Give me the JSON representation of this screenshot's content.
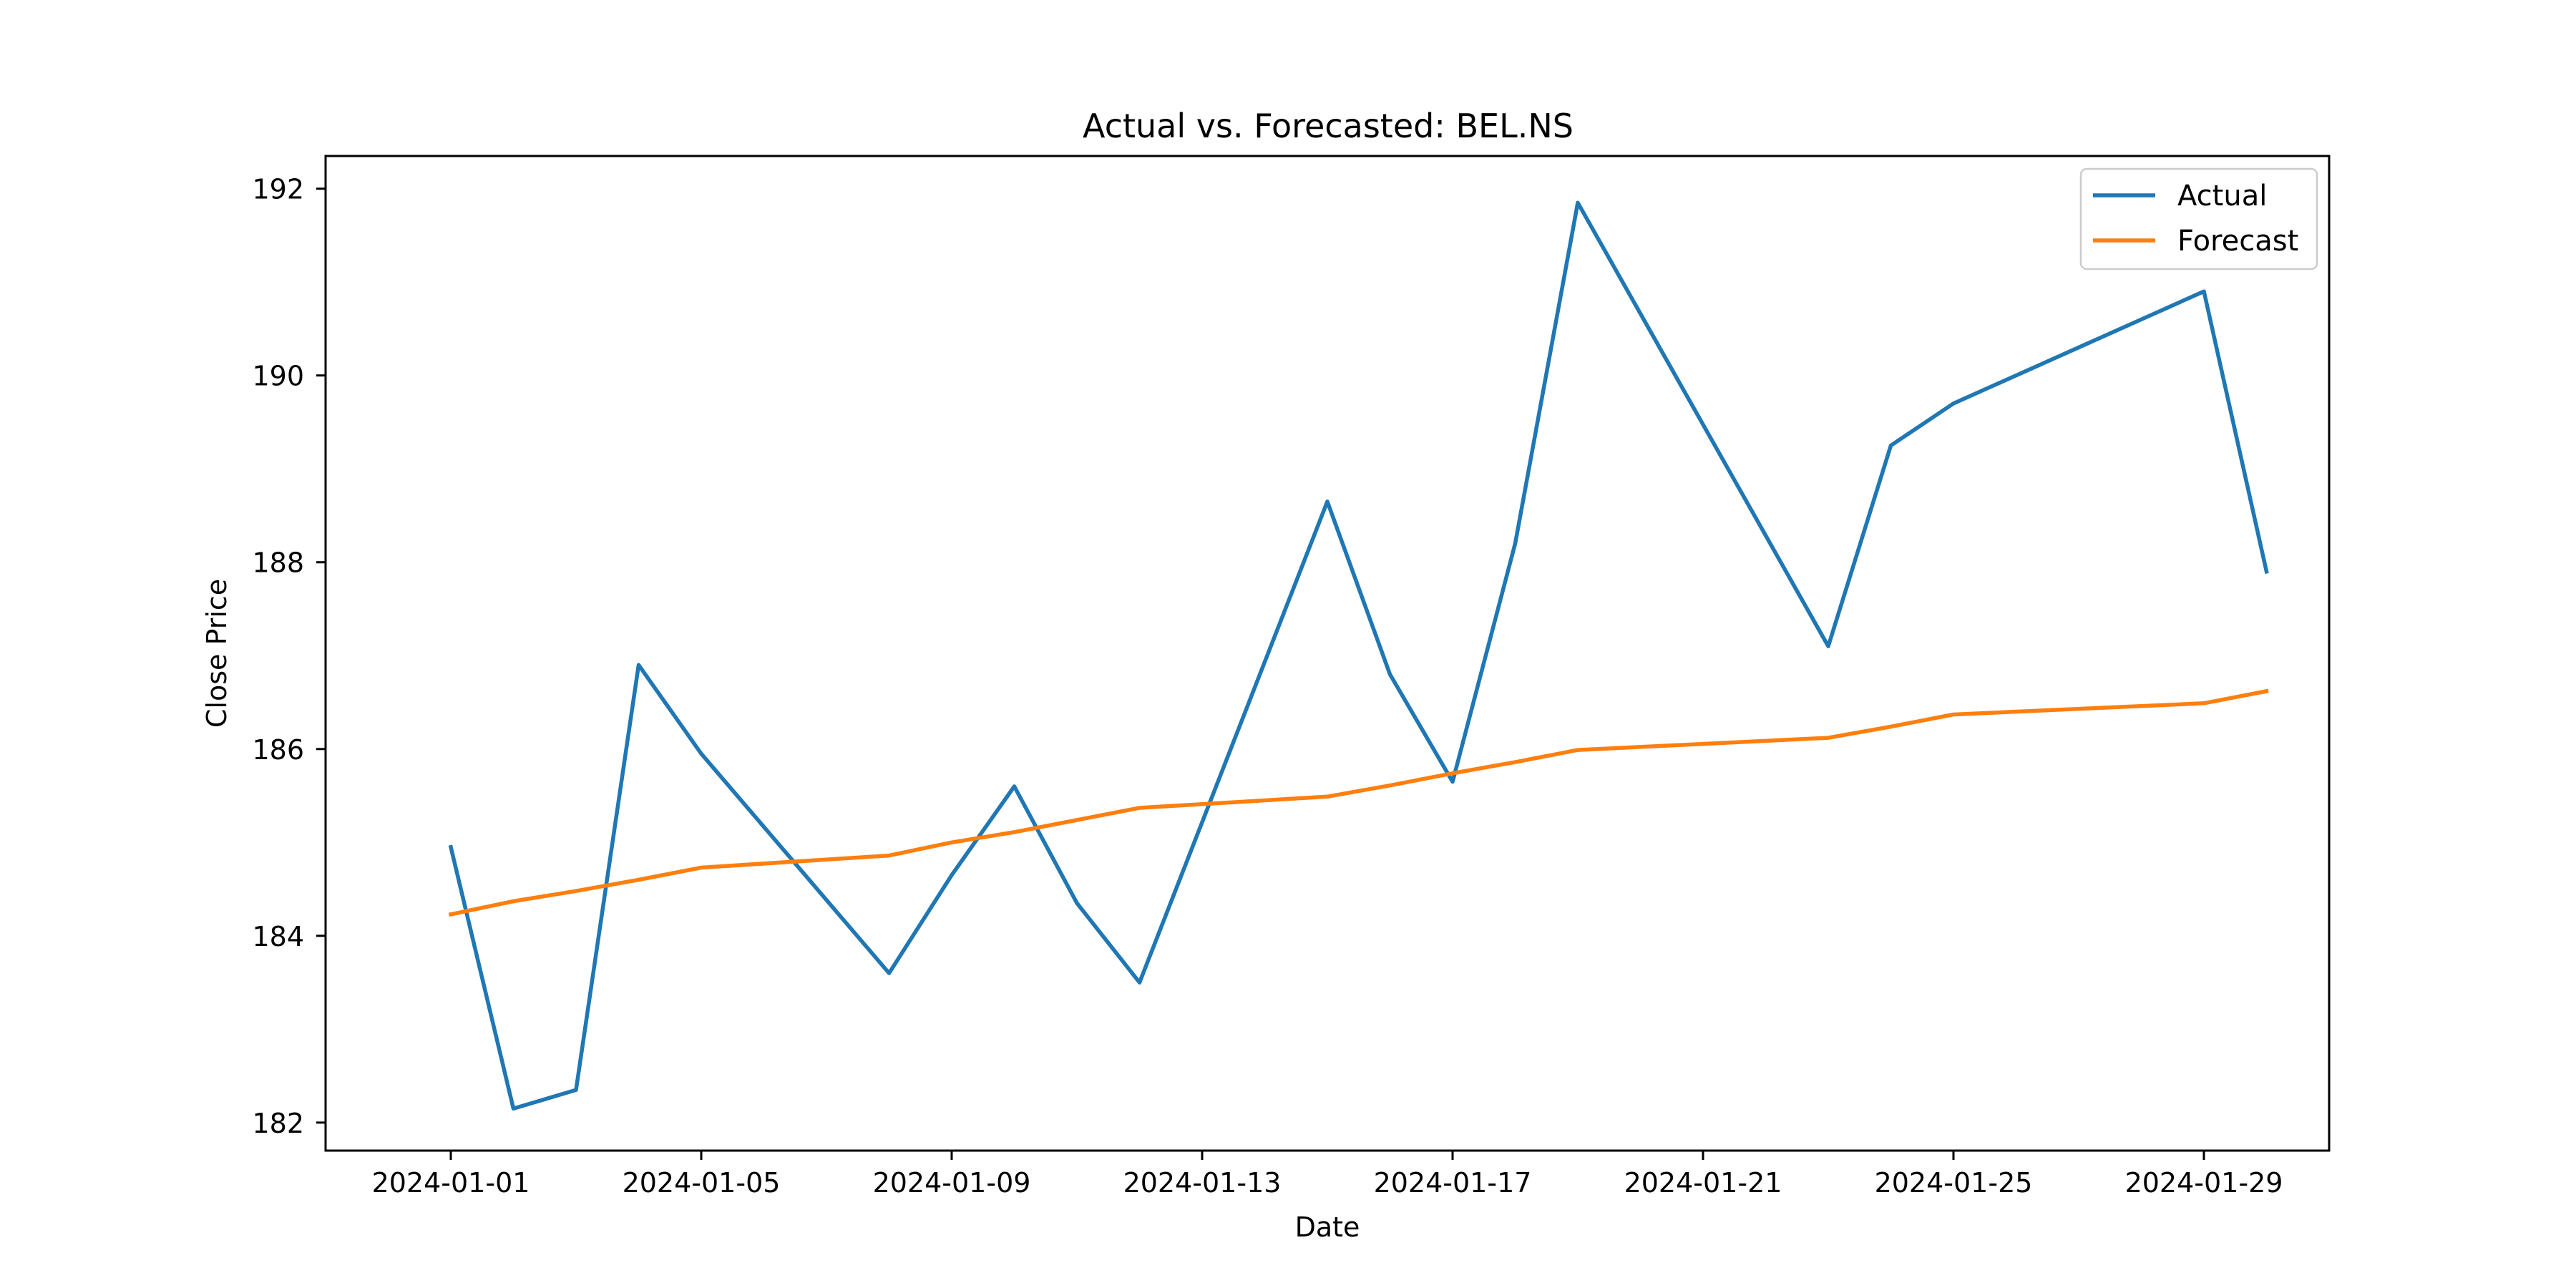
{
  "chart_data": {
    "type": "line",
    "title": "Actual vs. Forecasted: BEL.NS",
    "xlabel": "Date",
    "ylabel": "Close Price",
    "x_tick_labels": [
      "2024-01-01",
      "2024-01-05",
      "2024-01-09",
      "2024-01-13",
      "2024-01-17",
      "2024-01-21",
      "2024-01-25",
      "2024-01-29"
    ],
    "x_ticks": [
      "2024-01-01",
      "2024-01-05",
      "2024-01-09",
      "2024-01-13",
      "2024-01-17",
      "2024-01-21",
      "2024-01-25",
      "2024-01-29"
    ],
    "y_ticks": [
      182,
      184,
      186,
      188,
      190,
      192
    ],
    "xlim": [
      "2023-12-30",
      "2024-01-31"
    ],
    "ylim": [
      181.7,
      192.35
    ],
    "grid": false,
    "legend_position": "top-right",
    "series": [
      {
        "name": "Actual",
        "color": "#1f77b4",
        "x": [
          "2024-01-01",
          "2024-01-02",
          "2024-01-03",
          "2024-01-04",
          "2024-01-05",
          "2024-01-08",
          "2024-01-09",
          "2024-01-10",
          "2024-01-11",
          "2024-01-12",
          "2024-01-15",
          "2024-01-16",
          "2024-01-17",
          "2024-01-18",
          "2024-01-19",
          "2024-01-23",
          "2024-01-24",
          "2024-01-25",
          "2024-01-29",
          "2024-01-30"
        ],
        "values": [
          184.95,
          182.15,
          182.35,
          186.9,
          185.95,
          183.6,
          184.65,
          185.6,
          184.35,
          183.5,
          188.65,
          186.8,
          185.65,
          188.2,
          191.85,
          187.1,
          189.25,
          189.7,
          190.9,
          187.9
        ]
      },
      {
        "name": "Forecast",
        "color": "#ff7f0e",
        "x": [
          "2024-01-01",
          "2024-01-02",
          "2024-01-03",
          "2024-01-04",
          "2024-01-05",
          "2024-01-08",
          "2024-01-09",
          "2024-01-10",
          "2024-01-11",
          "2024-01-12",
          "2024-01-15",
          "2024-01-16",
          "2024-01-17",
          "2024-01-18",
          "2024-01-19",
          "2024-01-23",
          "2024-01-24",
          "2024-01-25",
          "2024-01-29",
          "2024-01-30"
        ],
        "values": [
          184.23,
          184.37,
          184.48,
          184.6,
          184.73,
          184.86,
          185.0,
          185.11,
          185.24,
          185.37,
          185.49,
          185.61,
          185.74,
          185.86,
          185.99,
          186.12,
          186.24,
          186.37,
          186.49,
          186.62
        ]
      }
    ]
  }
}
